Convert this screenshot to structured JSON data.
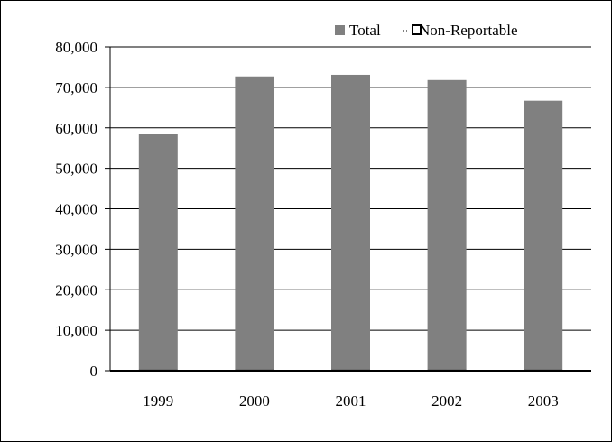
{
  "chart_data": {
    "type": "bar",
    "categories": [
      "1999",
      "2000",
      "2001",
      "2002",
      "2003"
    ],
    "series": [
      {
        "name": "Total",
        "values": [
          58500,
          72700,
          73100,
          71800,
          66700
        ],
        "color": "#808080"
      },
      {
        "name": "Non-Reportable",
        "values": [
          250,
          250,
          250,
          250,
          250
        ],
        "color": "#000000"
      }
    ],
    "ylim": [
      0,
      80000
    ],
    "yticks": [
      0,
      10000,
      20000,
      30000,
      40000,
      50000,
      60000,
      70000,
      80000
    ],
    "ytick_labels": [
      "0",
      "10,000",
      "20,000",
      "30,000",
      "40,000",
      "50,000",
      "60,000",
      "70,000",
      "80,000"
    ],
    "grid": true,
    "legend": "top-right"
  }
}
